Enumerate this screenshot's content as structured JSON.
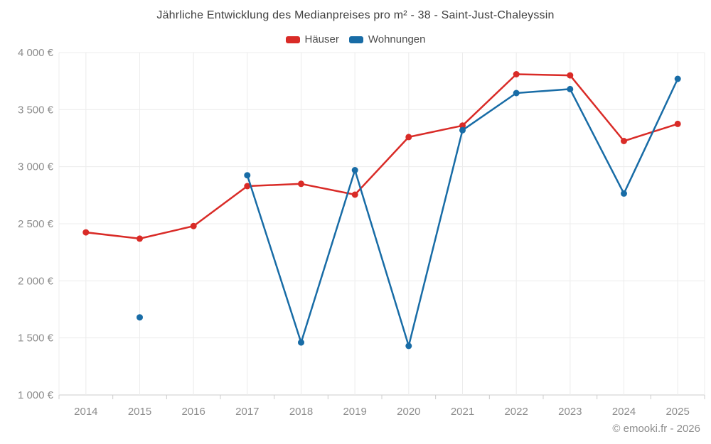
{
  "title": "Jährliche Entwicklung des Medianpreises pro m² - 38 - Saint-Just-Chaleyssin",
  "footer": "© emooki.fr - 2026",
  "legend": {
    "items": [
      {
        "key": "hauser",
        "label": "Häuser",
        "color": "#d92b27"
      },
      {
        "key": "wohnungen",
        "label": "Wohnungen",
        "color": "#186ca6"
      }
    ]
  },
  "colors": {
    "hauser": "#d92b27",
    "wohnungen": "#186ca6",
    "grid": "#ececec",
    "axis": "#cccccc",
    "tick_label": "#8d8d8d",
    "title_text": "#3f3f3f",
    "legend_text": "#4d4d4d",
    "background": "#ffffff"
  },
  "chart_data": {
    "type": "line",
    "title": "Jährliche Entwicklung des Medianpreises pro m² - 38 - Saint-Just-Chaleyssin",
    "categories": [
      "2014",
      "2015",
      "2016",
      "2017",
      "2018",
      "2019",
      "2020",
      "2021",
      "2022",
      "2023",
      "2024",
      "2025"
    ],
    "series": [
      {
        "key": "hauser",
        "name": "Häuser",
        "color": "#d92b27",
        "values": [
          2425,
          2370,
          2480,
          2830,
          2850,
          2755,
          3260,
          3360,
          3810,
          3800,
          3225,
          3375
        ]
      },
      {
        "key": "wohnungen",
        "name": "Wohnungen",
        "color": "#186ca6",
        "values": [
          null,
          1680,
          null,
          2925,
          1460,
          2970,
          1430,
          3320,
          3645,
          3680,
          2765,
          3770
        ]
      }
    ],
    "ylim": [
      1000,
      4000
    ],
    "yticks": [
      1000,
      1500,
      2000,
      2500,
      3000,
      3500,
      4000
    ],
    "ytick_labels": [
      "1 000 €",
      "1 500 €",
      "2 000 €",
      "2 500 €",
      "3 000 €",
      "3 500 €",
      "4 000 €"
    ],
    "xlabel": "",
    "ylabel": "",
    "unit": "€",
    "grid": true,
    "legend_position": "top"
  }
}
